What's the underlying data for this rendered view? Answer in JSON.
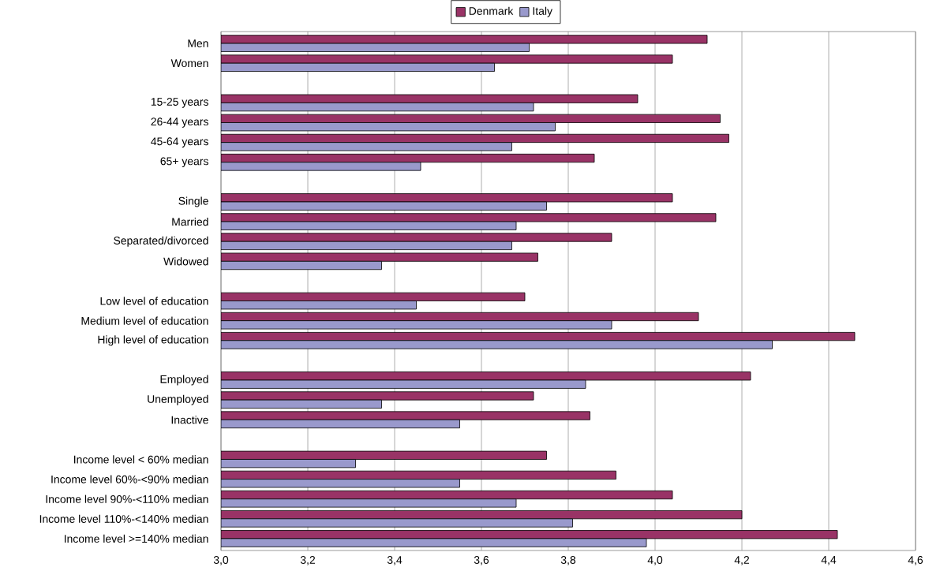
{
  "chart_data": {
    "type": "bar",
    "orientation": "horizontal",
    "categories": [
      "Men",
      "Women",
      null,
      "15-25 years",
      "26-44 years",
      "45-64 years",
      "65+ years",
      null,
      "Single",
      "Married",
      "Separated/divorced",
      "Widowed",
      null,
      "Low level of education",
      "Medium level of education",
      "High level of education",
      null,
      "Employed",
      "Unemployed",
      "Inactive",
      null,
      "Income level < 60% median",
      "Income level 60%-<90% median",
      "Income level 90%-<110% median",
      "Income level 110%-<140% median",
      "Income level >=140% median"
    ],
    "series": [
      {
        "name": "Denmark",
        "color": "#993366",
        "values": [
          4.12,
          4.04,
          null,
          3.96,
          4.15,
          4.17,
          3.86,
          null,
          4.04,
          4.14,
          3.9,
          3.73,
          null,
          3.7,
          4.1,
          4.46,
          null,
          4.22,
          3.72,
          3.85,
          null,
          3.75,
          3.91,
          4.04,
          4.2,
          4.42
        ]
      },
      {
        "name": "Italy",
        "color": "#9999cc",
        "values": [
          3.71,
          3.63,
          null,
          3.72,
          3.77,
          3.67,
          3.46,
          null,
          3.75,
          3.68,
          3.67,
          3.37,
          null,
          3.45,
          3.9,
          4.27,
          null,
          3.84,
          3.37,
          3.55,
          null,
          3.31,
          3.55,
          3.68,
          3.81,
          3.98
        ]
      }
    ],
    "xlim": [
      3.0,
      4.6
    ],
    "xticks": [
      {
        "value": 3.0,
        "label": "3,0"
      },
      {
        "value": 3.2,
        "label": "3,2"
      },
      {
        "value": 3.4,
        "label": "3,4"
      },
      {
        "value": 3.6,
        "label": "3,6"
      },
      {
        "value": 3.8,
        "label": "3,8"
      },
      {
        "value": 4.0,
        "label": "4,0"
      },
      {
        "value": 4.2,
        "label": "4,2"
      },
      {
        "value": 4.4,
        "label": "4,4"
      },
      {
        "value": 4.6,
        "label": "4,6"
      }
    ],
    "grid": "x",
    "legend": "top"
  }
}
